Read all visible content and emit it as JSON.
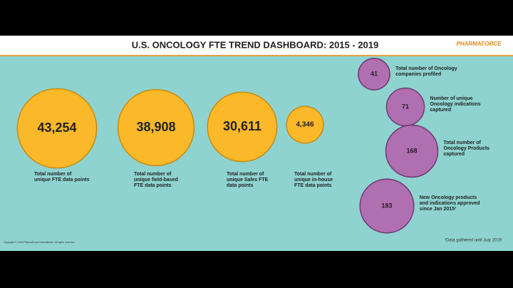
{
  "header": {
    "title": "U.S. ONCOLOGY FTE TREND DASHBOARD: 2015 - 2019",
    "logo": "PHARMAFORCE"
  },
  "fte_metrics": [
    {
      "value": 43254,
      "value_label": "43,254",
      "label": [
        "Total number of",
        "unique FTE data points"
      ]
    },
    {
      "value": 38908,
      "value_label": "38,908",
      "label": [
        "Total number of",
        "unique field-based",
        "FTE data points"
      ]
    },
    {
      "value": 30611,
      "value_label": "30,611",
      "label": [
        "Total number of",
        "unique Sales FTE",
        "data points"
      ]
    },
    {
      "value": 4346,
      "value_label": "4,346",
      "label": [
        "Total number of",
        "unique in-house",
        "FTE data points"
      ]
    }
  ],
  "oncology_counts": [
    {
      "value": 41,
      "label": [
        "Total number of Oncology",
        "companies profiled"
      ]
    },
    {
      "value": 71,
      "label": [
        "Number of unique",
        "Oncology indications",
        "captured"
      ]
    },
    {
      "value": 168,
      "label": [
        "Total number of",
        "Oncology Products",
        "captured"
      ]
    },
    {
      "value": 183,
      "label": [
        "New Oncology products",
        "and indications approved",
        "since Jan 2015¹"
      ]
    }
  ],
  "footnote": "¹Data gathered until July 2019",
  "copyright": "Copyright © 2019 PharmaForce International. All rights reserved."
}
